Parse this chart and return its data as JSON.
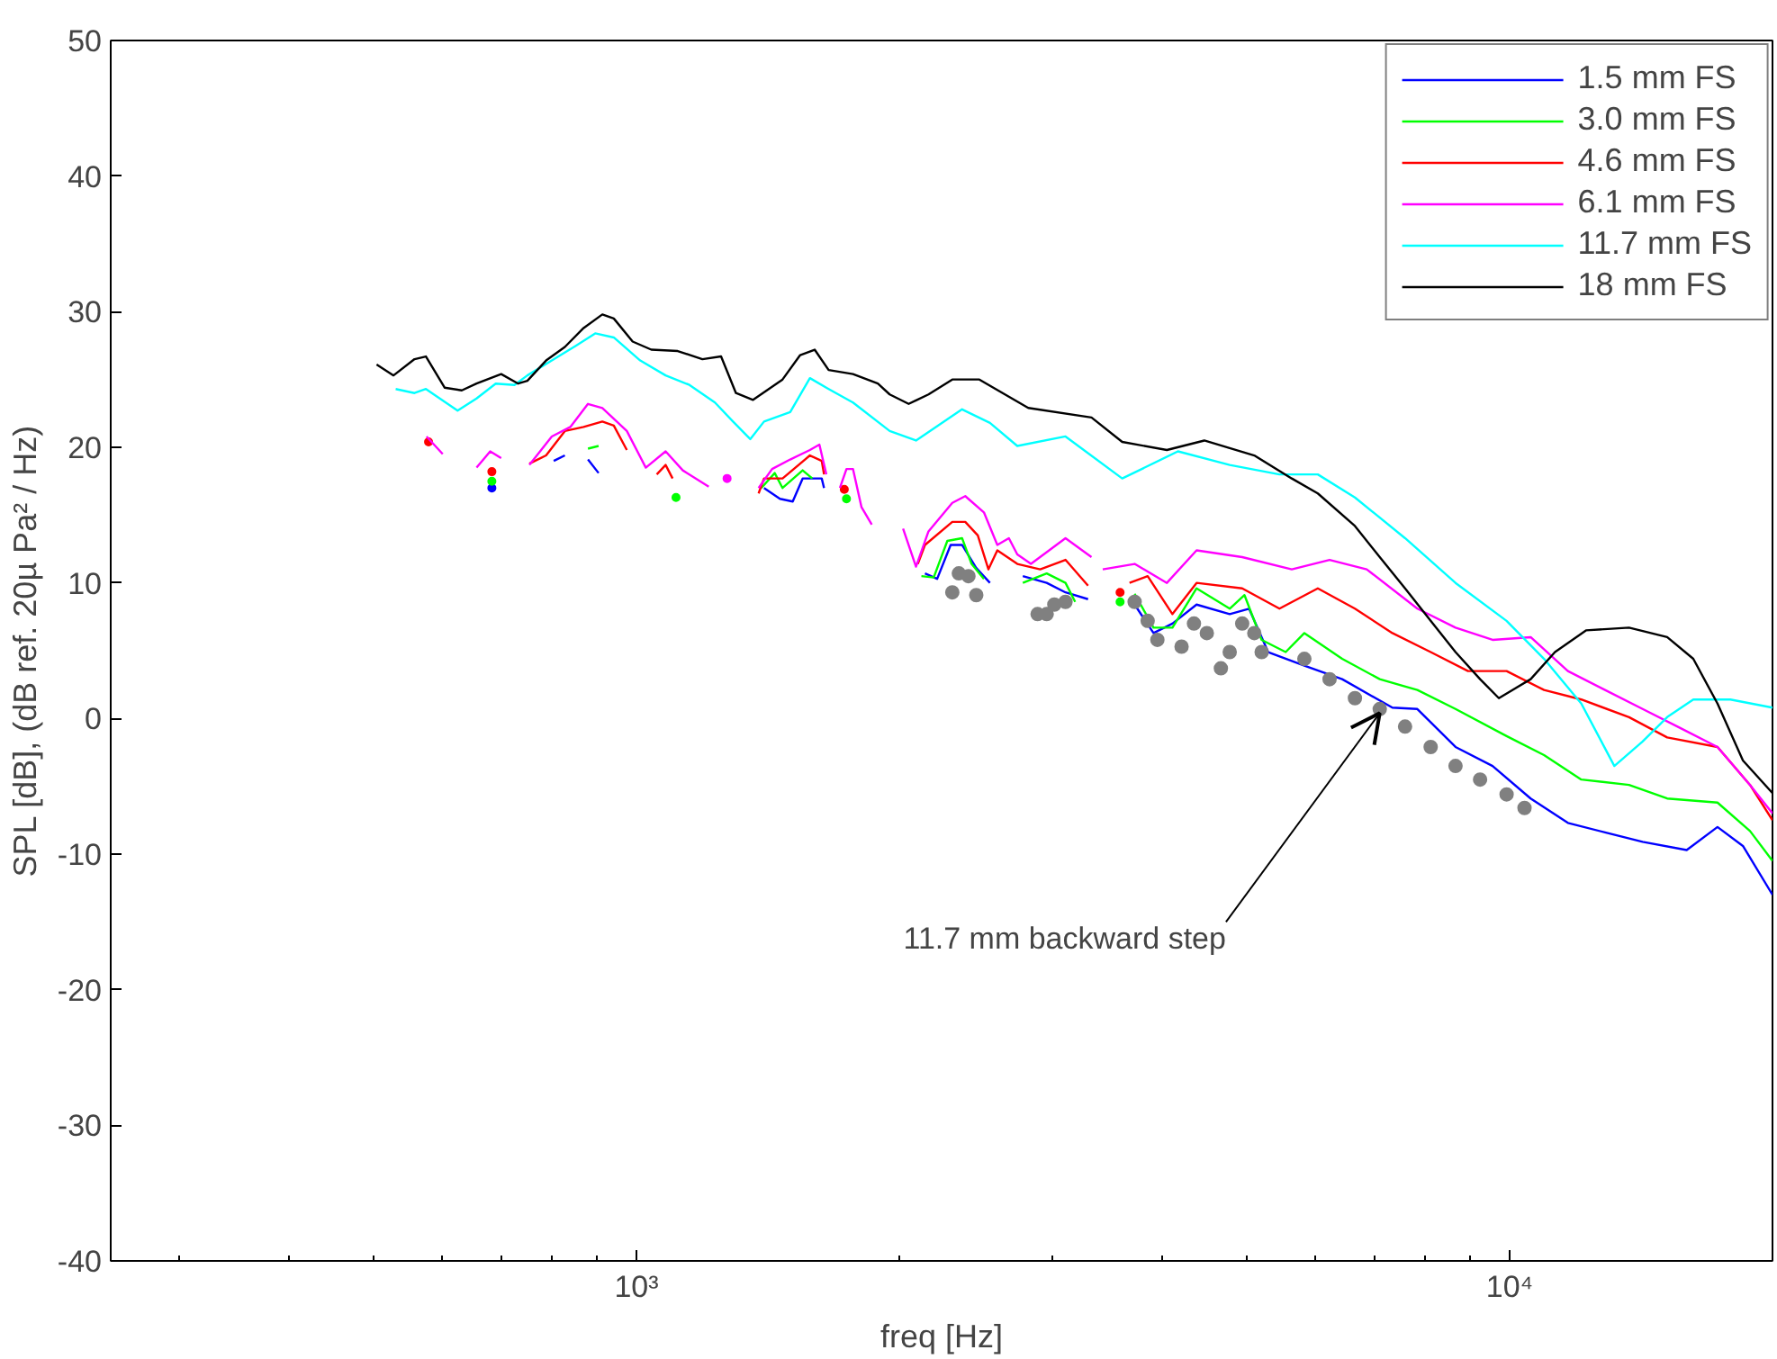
{
  "chart_data": {
    "type": "line",
    "xlabel": "freq [Hz]",
    "ylabel": "SPL [dB], (dB ref. 20µ Pa² / Hz)",
    "log": "x",
    "grid": false,
    "legend": "top right",
    "line_style": "solid",
    "marker": "none",
    "xlim": [
      250,
      20000
    ],
    "ylim": [
      -40,
      50
    ],
    "xticks": [
      {
        "value": 300,
        "label": null
      },
      {
        "value": 400,
        "label": null
      },
      {
        "value": 500,
        "label": null
      },
      {
        "value": 600,
        "label": null
      },
      {
        "value": 700,
        "label": null
      },
      {
        "value": 800,
        "label": null
      },
      {
        "value": 900,
        "label": null
      },
      {
        "value": 1000,
        "label": "10³"
      },
      {
        "value": 2000,
        "label": null
      },
      {
        "value": 3000,
        "label": null
      },
      {
        "value": 4000,
        "label": null
      },
      {
        "value": 5000,
        "label": null
      },
      {
        "value": 6000,
        "label": null
      },
      {
        "value": 7000,
        "label": null
      },
      {
        "value": 8000,
        "label": null
      },
      {
        "value": 9000,
        "label": null
      },
      {
        "value": 10000,
        "label": "10⁴"
      }
    ],
    "yticks": [
      -40,
      -30,
      -20,
      -10,
      0,
      10,
      20,
      30,
      40,
      50
    ],
    "annotations": [
      {
        "text": "11.7 mm backward step",
        "x": 7100,
        "y": 0.4
      }
    ],
    "series": [
      {
        "name": "1.5 mm FS",
        "color": "#0000ff",
        "x": [
          683,
          740,
          804,
          828,
          850,
          880,
          905,
          1200,
          1400,
          1460,
          1510,
          1550,
          1630,
          1640,
          1900,
          2140,
          2210,
          2290,
          2360,
          2450,
          2540,
          2650,
          2770,
          2950,
          3100,
          3290,
          3500,
          3720,
          3910,
          4110,
          4380,
          4780,
          5030,
          5290,
          5820,
          6430,
          7340,
          7840,
          8670,
          9560,
          10570,
          11660,
          12860,
          14200,
          15950,
          17300,
          18500,
          20000
        ],
        "values": [
          17.0,
          null,
          19.0,
          19.4,
          null,
          19.1,
          18.1,
          null,
          17.0,
          16.2,
          16.0,
          17.7,
          17.7,
          17.0,
          null,
          10.7,
          10.3,
          12.8,
          12.8,
          11.1,
          10.0,
          null,
          10.5,
          10.0,
          9.3,
          8.8,
          null,
          8.4,
          6.3,
          7.0,
          8.4,
          7.7,
          8.1,
          4.9,
          3.9,
          2.9,
          0.8,
          0.7,
          -2.1,
          -3.5,
          -5.9,
          -7.7,
          -8.4,
          -9.1,
          -9.7,
          -8.0,
          -9.4,
          -13.0
        ]
      },
      {
        "name": "3.0 mm FS",
        "color": "#00ff00",
        "x": [
          683,
          780,
          880,
          905,
          1000,
          1110,
          1250,
          1390,
          1440,
          1470,
          1550,
          1590,
          1660,
          1740,
          1900,
          2120,
          2190,
          2270,
          2360,
          2420,
          2500,
          2640,
          2770,
          2950,
          3100,
          3180,
          3380,
          3580,
          3650,
          3720,
          3910,
          4110,
          4380,
          4780,
          4970,
          5200,
          5540,
          5820,
          6430,
          7100,
          7840,
          8670,
          9920,
          10950,
          12080,
          13700,
          15150,
          17300,
          18850,
          20000
        ],
        "values": [
          17.5,
          null,
          19.9,
          20.1,
          null,
          16.3,
          null,
          17.0,
          18.1,
          17.0,
          18.3,
          17.7,
          null,
          16.2,
          null,
          10.5,
          10.4,
          13.1,
          13.3,
          11.4,
          10.3,
          null,
          10.0,
          10.7,
          10.0,
          8.6,
          null,
          8.6,
          null,
          9.2,
          6.7,
          6.7,
          9.6,
          8.1,
          9.1,
          5.8,
          4.9,
          6.3,
          4.4,
          2.9,
          2.1,
          0.7,
          -1.3,
          -2.7,
          -4.5,
          -4.9,
          -5.9,
          -6.2,
          -8.3,
          -10.5
        ]
      },
      {
        "name": "4.6 mm FS",
        "color": "#ff0000",
        "x": [
          578,
          640,
          683,
          720,
          754,
          788,
          828,
          870,
          914,
          942,
          975,
          1020,
          1055,
          1080,
          1100,
          1250,
          1380,
          1400,
          1470,
          1580,
          1630,
          1640,
          1690,
          1730,
          1900,
          2100,
          2140,
          2300,
          2380,
          2460,
          2530,
          2590,
          2730,
          2900,
          3100,
          3290,
          3450,
          3580,
          3620,
          3670,
          3850,
          4110,
          4380,
          4940,
          5450,
          6030,
          6650,
          7340,
          8120,
          8960,
          9920,
          10950,
          12080,
          13700,
          15150,
          17300,
          18850,
          20000
        ],
        "values": [
          20.4,
          null,
          18.2,
          null,
          18.8,
          19.4,
          21.2,
          21.5,
          21.9,
          21.6,
          19.8,
          null,
          18.0,
          18.7,
          17.7,
          null,
          16.6,
          17.7,
          17.7,
          19.4,
          19.0,
          18.0,
          null,
          16.9,
          null,
          11.4,
          12.8,
          14.5,
          14.5,
          13.5,
          11.0,
          12.4,
          11.4,
          11.0,
          11.7,
          9.8,
          null,
          9.3,
          null,
          10.0,
          10.5,
          7.7,
          10.0,
          9.6,
          8.1,
          9.6,
          8.1,
          6.3,
          4.9,
          3.5,
          3.5,
          2.1,
          1.4,
          0.1,
          -1.4,
          -2.1,
          -4.9,
          -7.5
        ]
      },
      {
        "name": "6.1 mm FS",
        "color": "#ff00ff",
        "x": [
          575,
          600,
          630,
          656,
          680,
          700,
          730,
          754,
          800,
          840,
          880,
          914,
          975,
          1025,
          1080,
          1130,
          1210,
          1240,
          1270,
          1320,
          1380,
          1430,
          1500,
          1580,
          1620,
          1650,
          1680,
          1710,
          1740,
          1770,
          1810,
          1860,
          1940,
          2020,
          2090,
          2160,
          2300,
          2380,
          2500,
          2590,
          2670,
          2730,
          2830,
          3100,
          3320,
          3370,
          3420,
          3720,
          4050,
          4380,
          4940,
          5630,
          6220,
          6860,
          7840,
          8670,
          9560,
          10570,
          11660,
          12860,
          14200,
          15680,
          17300,
          18850,
          20000
        ],
        "values": [
          20.8,
          19.5,
          null,
          18.5,
          19.7,
          19.2,
          null,
          18.7,
          20.8,
          21.5,
          23.2,
          22.9,
          21.2,
          18.5,
          19.7,
          18.3,
          17.1,
          null,
          17.7,
          null,
          17.0,
          18.4,
          19.1,
          19.8,
          20.2,
          18.0,
          null,
          17.0,
          18.4,
          18.4,
          15.6,
          14.3,
          null,
          14.0,
          11.2,
          13.8,
          15.9,
          16.4,
          15.2,
          12.8,
          13.3,
          12.1,
          11.4,
          13.3,
          11.9,
          null,
          11.0,
          11.4,
          10.0,
          12.4,
          11.9,
          11.0,
          11.7,
          11.0,
          8.1,
          6.7,
          5.8,
          6.0,
          3.5,
          2.1,
          0.7,
          -0.7,
          -2.1,
          -4.9,
          -7.0
        ]
      },
      {
        "name": "11.7 mm FS",
        "color": "#00ffff",
        "x": [
          530,
          557,
          574,
          624,
          656,
          690,
          725,
          750,
          800,
          853,
          897,
          942,
          1010,
          1080,
          1150,
          1230,
          1290,
          1350,
          1400,
          1500,
          1580,
          1660,
          1770,
          1950,
          2090,
          2360,
          2540,
          2730,
          3100,
          3600,
          4170,
          4780,
          5450,
          6030,
          6650,
          7590,
          8670,
          9920,
          10950,
          12080,
          13180,
          14200,
          15150,
          16230,
          17900,
          20000
        ],
        "values": [
          24.3,
          24.0,
          24.3,
          22.7,
          23.6,
          24.7,
          24.6,
          25.3,
          26.4,
          27.5,
          28.4,
          28.1,
          26.4,
          25.3,
          24.6,
          23.3,
          21.9,
          20.6,
          21.9,
          22.6,
          25.1,
          24.3,
          23.3,
          21.2,
          20.5,
          22.8,
          21.8,
          20.1,
          20.8,
          17.7,
          19.7,
          18.7,
          18.0,
          18.0,
          16.3,
          13.3,
          10.0,
          7.2,
          4.4,
          1.1,
          -3.5,
          -1.7,
          0.1,
          1.4,
          1.4,
          0.8
        ]
      },
      {
        "name": "18 mm FS",
        "color": "#000000",
        "x": [
          504,
          527,
          557,
          574,
          603,
          631,
          656,
          700,
          732,
          750,
          788,
          828,
          870,
          914,
          942,
          990,
          1040,
          1115,
          1190,
          1250,
          1300,
          1360,
          1470,
          1540,
          1600,
          1660,
          1770,
          1890,
          1950,
          2050,
          2160,
          2300,
          2470,
          2810,
          3320,
          3600,
          4050,
          4470,
          5100,
          5630,
          6030,
          6650,
          7100,
          7590,
          8120,
          8670,
          9250,
          9720,
          10570,
          11270,
          12230,
          13700,
          15150,
          16230,
          17300,
          18500,
          20000
        ],
        "values": [
          26.1,
          25.3,
          26.5,
          26.7,
          24.4,
          24.2,
          24.7,
          25.4,
          24.7,
          24.9,
          26.4,
          27.4,
          28.8,
          29.8,
          29.5,
          27.8,
          27.2,
          27.1,
          26.5,
          26.7,
          24.0,
          23.5,
          25.0,
          26.8,
          27.2,
          25.7,
          25.4,
          24.7,
          23.9,
          23.2,
          23.9,
          25.0,
          25.0,
          22.9,
          22.2,
          20.4,
          19.8,
          20.5,
          19.4,
          17.7,
          16.6,
          14.2,
          11.9,
          9.6,
          7.2,
          4.9,
          2.9,
          1.5,
          2.9,
          4.9,
          6.5,
          6.7,
          6.0,
          4.4,
          1.1,
          -3.1,
          -5.5
        ]
      },
      {
        "type": "scatter",
        "color": "#808080",
        "marker": "circle",
        "x": [
          2300,
          2340,
          2400,
          2450,
          2880,
          2950,
          3010,
          3100,
          3720,
          3850,
          3950,
          4210,
          4350,
          4500,
          4670,
          4780,
          4940,
          5100,
          5200,
          5820,
          6220,
          6650,
          7100,
          7590,
          8120,
          8670,
          9250,
          9920,
          10400
        ],
        "values": [
          9.3,
          10.7,
          10.5,
          9.1,
          7.7,
          7.7,
          8.4,
          8.6,
          8.6,
          7.2,
          5.8,
          5.3,
          7.0,
          6.3,
          3.7,
          4.9,
          7.0,
          6.3,
          4.9,
          4.4,
          2.9,
          1.5,
          0.7,
          -0.6,
          -2.1,
          -3.5,
          -4.5,
          -5.6,
          -6.6
        ]
      }
    ]
  }
}
